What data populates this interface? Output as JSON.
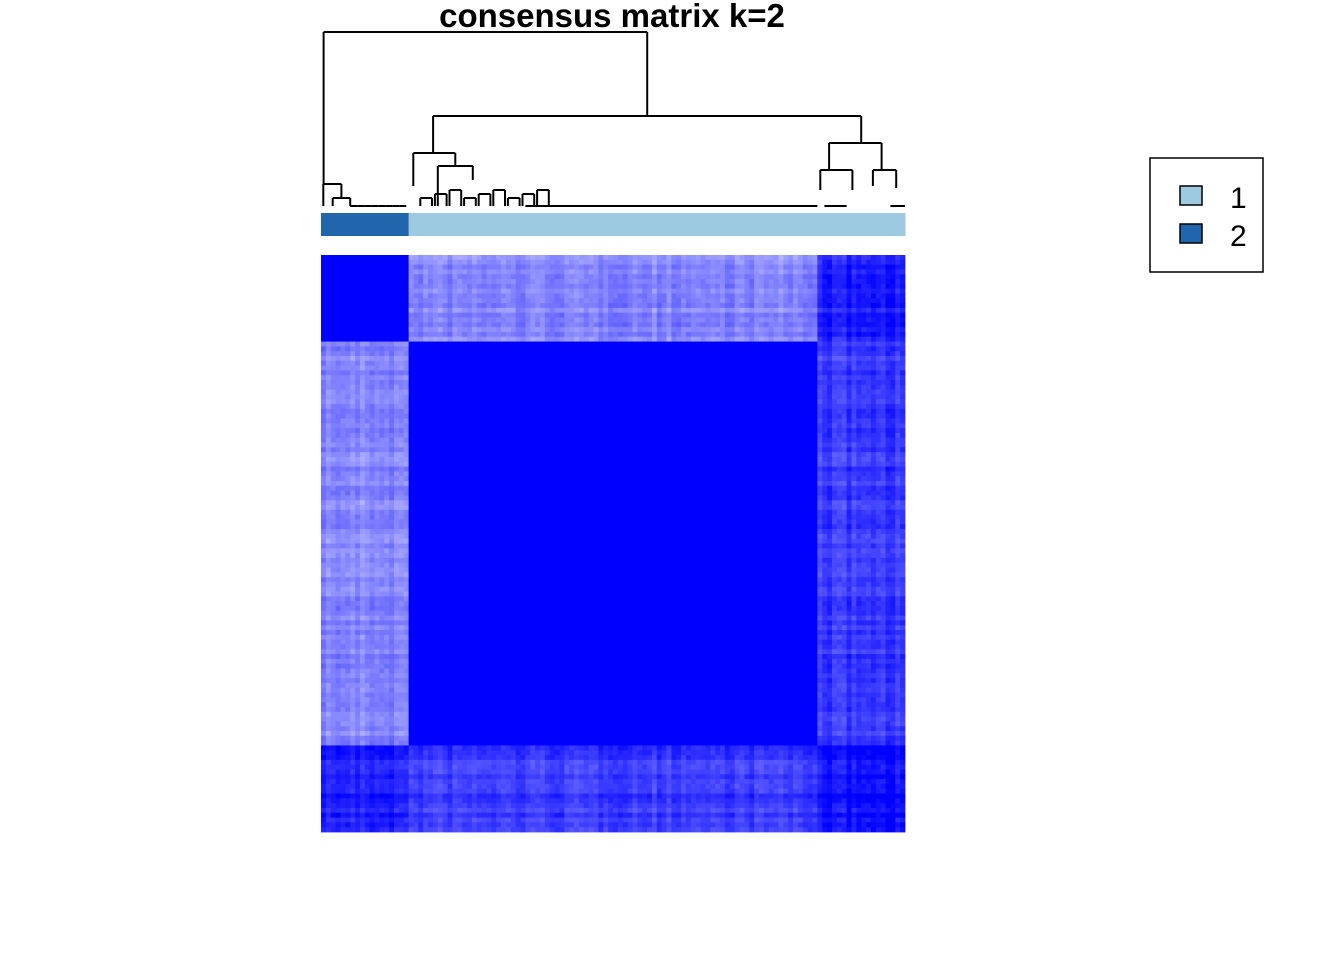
{
  "chart_data": {
    "type": "heatmap",
    "title": "consensus matrix k=2",
    "colors": {
      "cluster_1": "#9ecae1",
      "cluster_2": "#2166ac",
      "heat_high": "#0000ff",
      "heat_mid": "#6b6bff",
      "heat_low": "#c0c0ff",
      "background": "#ffffff"
    },
    "cluster_column_order": [
      2,
      1
    ],
    "clusters": [
      {
        "name": "2",
        "fraction": 0.15
      },
      {
        "name": "1",
        "fraction": 0.7
      },
      {
        "name": "1",
        "fraction": 0.15
      }
    ],
    "legend": {
      "position": "top-right",
      "items": [
        {
          "label": "1",
          "color": "#9ecae1"
        },
        {
          "label": "2",
          "color": "#2166ac"
        }
      ]
    },
    "color_scale": {
      "min": 0,
      "max": 1
    },
    "block_consensus": [
      [
        1.0,
        0.3,
        0.85
      ],
      [
        0.3,
        1.0,
        0.7
      ],
      [
        0.85,
        0.7,
        0.95
      ]
    ]
  }
}
